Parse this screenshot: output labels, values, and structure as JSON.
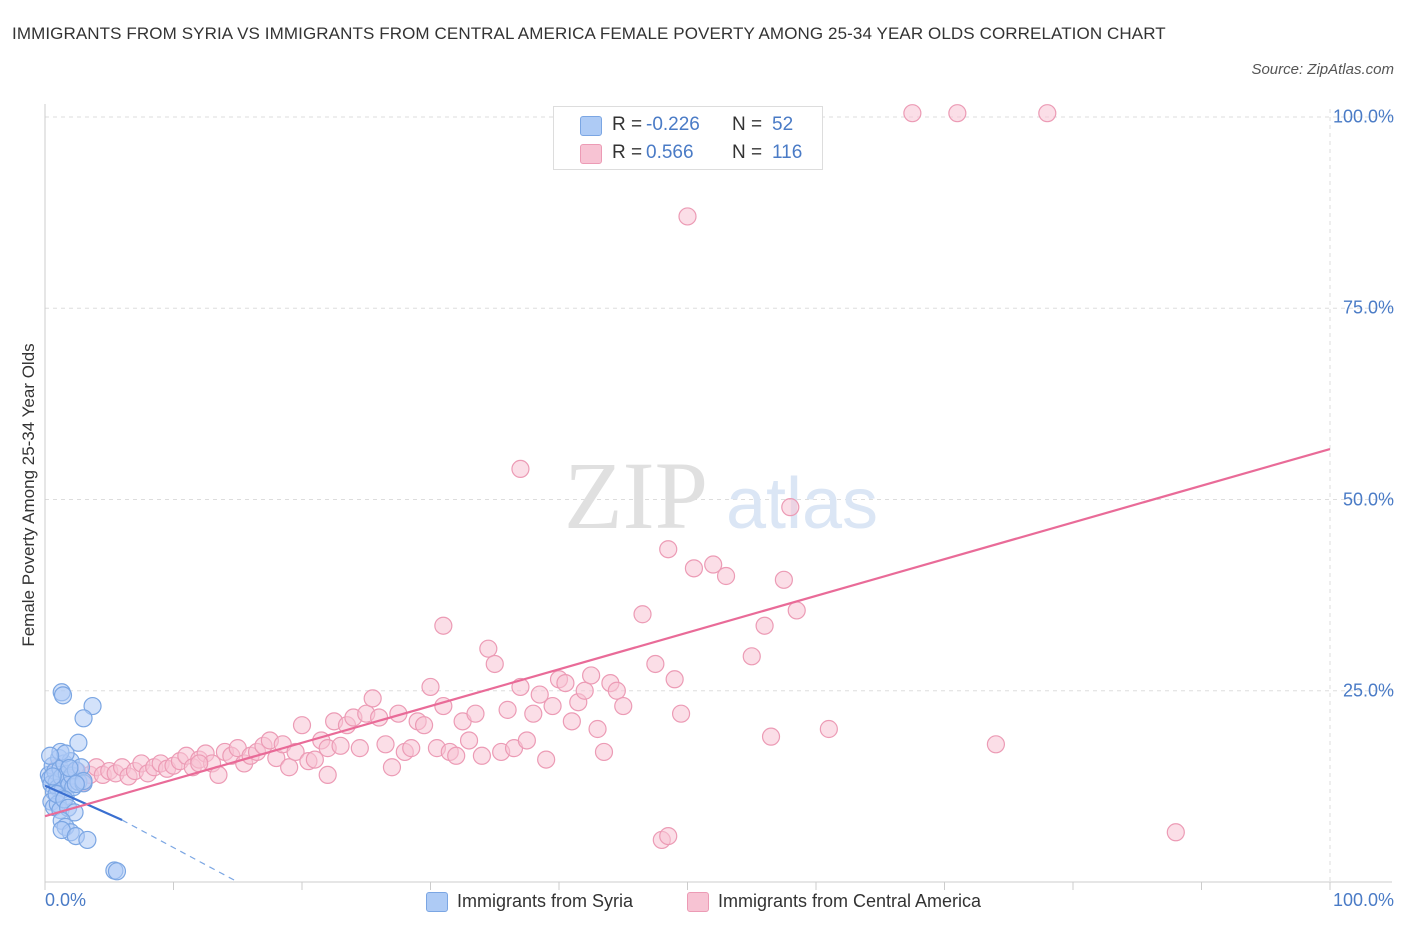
{
  "title": "IMMIGRANTS FROM SYRIA VS IMMIGRANTS FROM CENTRAL AMERICA FEMALE POVERTY AMONG 25-34 YEAR OLDS CORRELATION CHART",
  "source": "Source: ZipAtlas.com",
  "watermark": {
    "zip": "ZIP",
    "atlas": "atlas"
  },
  "legend_top": {
    "r_label": "R =",
    "n_label": "N =",
    "rows": [
      {
        "r": "-0.226",
        "n": "52",
        "fill": "#aecbf5",
        "stroke": "#7ba6e3"
      },
      {
        "r": "0.566",
        "n": "116",
        "fill": "#f7c3d3",
        "stroke": "#ec9bb5"
      }
    ]
  },
  "legend_bottom": [
    {
      "label": "Immigrants from Syria",
      "fill": "#aecbf5",
      "stroke": "#7ba6e3"
    },
    {
      "label": "Immigrants from Central America",
      "fill": "#f7c3d3",
      "stroke": "#ec9bb5"
    }
  ],
  "chart_data": {
    "type": "scatter",
    "title": "IMMIGRANTS FROM SYRIA VS IMMIGRANTS FROM CENTRAL AMERICA FEMALE POVERTY AMONG 25-34 YEAR OLDS CORRELATION CHART",
    "xlabel": "",
    "ylabel": "Female Poverty Among 25-34 Year Olds",
    "xlim": [
      0,
      100
    ],
    "ylim": [
      0,
      100
    ],
    "x_tick_labels": [
      "0.0%",
      "100.0%"
    ],
    "y_ticks": [
      {
        "value": 25,
        "label": "25.0%"
      },
      {
        "value": 50,
        "label": "50.0%"
      },
      {
        "value": 75,
        "label": "75.0%"
      },
      {
        "value": 100,
        "label": "100.0%"
      }
    ],
    "grid": true,
    "legend_position": "bottom",
    "series": [
      {
        "name": "Immigrants from Syria",
        "color": "#7ba6e3",
        "fill": "#aecbf5",
        "trend": {
          "x": [
            0,
            6
          ],
          "y": [
            12.6,
            8.1
          ],
          "color": "#3a6fd0"
        },
        "trend_extension": {
          "x": [
            6,
            15
          ],
          "y": [
            8.1,
            0
          ],
          "color": "#7ba6e3"
        },
        "points": [
          [
            0.3,
            14.0
          ],
          [
            0.4,
            13.5
          ],
          [
            0.5,
            12.8
          ],
          [
            0.6,
            15.2
          ],
          [
            0.7,
            11.8
          ],
          [
            0.8,
            14.5
          ],
          [
            0.9,
            13.0
          ],
          [
            1.0,
            12.3
          ],
          [
            1.1,
            16.2
          ],
          [
            1.2,
            14.8
          ],
          [
            1.3,
            13.7
          ],
          [
            1.4,
            12.1
          ],
          [
            1.5,
            15.5
          ],
          [
            1.6,
            11.2
          ],
          [
            1.7,
            14.1
          ],
          [
            1.8,
            13.3
          ],
          [
            1.9,
            12.7
          ],
          [
            2.0,
            15.8
          ],
          [
            2.1,
            13.9
          ],
          [
            2.2,
            12.4
          ],
          [
            2.4,
            14.6
          ],
          [
            2.6,
            13.1
          ],
          [
            2.8,
            15.0
          ],
          [
            3.0,
            12.9
          ],
          [
            0.5,
            10.5
          ],
          [
            0.7,
            9.8
          ],
          [
            1.0,
            10.2
          ],
          [
            1.2,
            9.4
          ],
          [
            0.9,
            11.5
          ],
          [
            1.5,
            10.8
          ],
          [
            1.8,
            9.7
          ],
          [
            2.3,
            9.1
          ],
          [
            1.3,
            8.0
          ],
          [
            1.6,
            7.2
          ],
          [
            2.0,
            6.5
          ],
          [
            1.3,
            6.8
          ],
          [
            2.4,
            6.0
          ],
          [
            3.3,
            5.5
          ],
          [
            5.4,
            1.5
          ],
          [
            5.6,
            1.4
          ],
          [
            1.3,
            24.8
          ],
          [
            1.4,
            24.4
          ],
          [
            3.7,
            23.0
          ],
          [
            3.0,
            21.4
          ],
          [
            2.6,
            18.2
          ],
          [
            1.2,
            17.0
          ],
          [
            1.6,
            16.8
          ],
          [
            0.4,
            16.5
          ],
          [
            3.0,
            13.2
          ],
          [
            2.4,
            12.8
          ],
          [
            1.9,
            14.9
          ],
          [
            0.6,
            13.8
          ]
        ]
      },
      {
        "name": "Immigrants from Central America",
        "color": "#ec9bb5",
        "fill": "#f7c3d3",
        "trend": {
          "x": [
            0,
            100
          ],
          "y": [
            8.6,
            56.6
          ],
          "color": "#e96b98"
        },
        "points": [
          [
            1.0,
            15.0
          ],
          [
            1.5,
            14.0
          ],
          [
            2.0,
            13.5
          ],
          [
            2.5,
            14.5
          ],
          [
            3.0,
            13.0
          ],
          [
            3.5,
            14.0
          ],
          [
            4.0,
            15.0
          ],
          [
            4.5,
            14.0
          ],
          [
            5.0,
            14.5
          ],
          [
            5.5,
            14.2
          ],
          [
            6.0,
            15.0
          ],
          [
            6.5,
            13.8
          ],
          [
            7.0,
            14.5
          ],
          [
            7.5,
            15.5
          ],
          [
            8.0,
            14.2
          ],
          [
            8.5,
            15.0
          ],
          [
            9.0,
            15.5
          ],
          [
            9.5,
            14.8
          ],
          [
            10.0,
            15.2
          ],
          [
            10.5,
            15.8
          ],
          [
            11.0,
            16.5
          ],
          [
            11.5,
            15.0
          ],
          [
            12.0,
            16.0
          ],
          [
            12.5,
            16.8
          ],
          [
            13.0,
            15.5
          ],
          [
            13.5,
            14.0
          ],
          [
            14.0,
            17.0
          ],
          [
            14.5,
            16.5
          ],
          [
            15.0,
            17.5
          ],
          [
            15.5,
            15.5
          ],
          [
            16.0,
            16.5
          ],
          [
            16.5,
            17.0
          ],
          [
            17.0,
            17.8
          ],
          [
            17.5,
            18.5
          ],
          [
            18.0,
            16.2
          ],
          [
            18.5,
            18.0
          ],
          [
            19.0,
            15.0
          ],
          [
            19.5,
            17.0
          ],
          [
            20.0,
            20.5
          ],
          [
            20.5,
            15.8
          ],
          [
            21.0,
            16.0
          ],
          [
            21.5,
            18.5
          ],
          [
            22.0,
            17.5
          ],
          [
            22.5,
            21.0
          ],
          [
            23.0,
            17.8
          ],
          [
            23.5,
            20.5
          ],
          [
            24.0,
            21.5
          ],
          [
            24.5,
            17.5
          ],
          [
            25.0,
            22.0
          ],
          [
            25.5,
            24.0
          ],
          [
            26.0,
            21.5
          ],
          [
            26.5,
            18.0
          ],
          [
            27.0,
            15.0
          ],
          [
            27.5,
            22.0
          ],
          [
            28.0,
            17.0
          ],
          [
            28.5,
            17.5
          ],
          [
            29.0,
            21.0
          ],
          [
            29.5,
            20.5
          ],
          [
            30.0,
            25.5
          ],
          [
            30.5,
            17.5
          ],
          [
            31.0,
            23.0
          ],
          [
            31.5,
            17.0
          ],
          [
            32.0,
            16.5
          ],
          [
            32.5,
            21.0
          ],
          [
            33.0,
            18.5
          ],
          [
            33.5,
            22.0
          ],
          [
            34.0,
            16.5
          ],
          [
            34.5,
            30.5
          ],
          [
            35.0,
            28.5
          ],
          [
            35.5,
            17.0
          ],
          [
            36.0,
            22.5
          ],
          [
            36.5,
            17.5
          ],
          [
            37.0,
            25.5
          ],
          [
            37.5,
            18.5
          ],
          [
            38.0,
            22.0
          ],
          [
            38.5,
            24.5
          ],
          [
            39.0,
            16.0
          ],
          [
            39.5,
            23.0
          ],
          [
            40.0,
            26.5
          ],
          [
            40.5,
            26.0
          ],
          [
            41.0,
            21.0
          ],
          [
            41.5,
            23.5
          ],
          [
            42.0,
            25.0
          ],
          [
            42.5,
            27.0
          ],
          [
            43.0,
            20.0
          ],
          [
            43.5,
            17.0
          ],
          [
            44.0,
            26.0
          ],
          [
            44.5,
            25.0
          ],
          [
            45.0,
            23.0
          ],
          [
            46.5,
            35.0
          ],
          [
            47.5,
            28.5
          ],
          [
            48.5,
            43.5
          ],
          [
            49.0,
            26.5
          ],
          [
            49.5,
            22.0
          ],
          [
            50.5,
            41.0
          ],
          [
            52.0,
            41.5
          ],
          [
            53.0,
            40.0
          ],
          [
            55.0,
            29.5
          ],
          [
            56.0,
            33.5
          ],
          [
            57.5,
            39.5
          ],
          [
            58.0,
            49.0
          ],
          [
            58.5,
            35.5
          ],
          [
            61.0,
            20.0
          ],
          [
            56.5,
            19.0
          ],
          [
            50.0,
            87.0
          ],
          [
            67.5,
            100.5
          ],
          [
            71.0,
            100.5
          ],
          [
            78.0,
            100.5
          ],
          [
            74.0,
            18.0
          ],
          [
            88.0,
            6.5
          ],
          [
            48.0,
            5.5
          ],
          [
            48.5,
            6.0
          ],
          [
            31.0,
            33.5
          ],
          [
            37.0,
            54.0
          ],
          [
            22.0,
            14.0
          ],
          [
            12.0,
            15.5
          ]
        ]
      }
    ]
  }
}
